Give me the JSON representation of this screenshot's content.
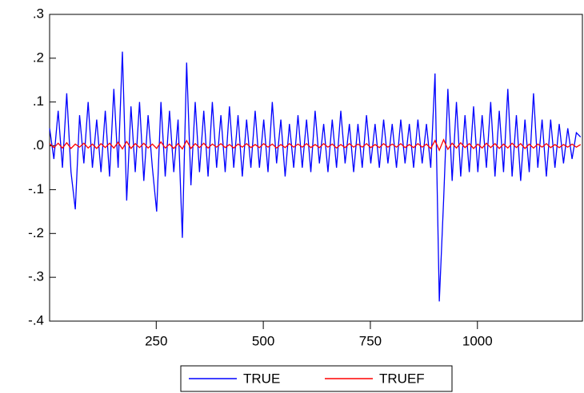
{
  "chart_data": {
    "type": "line",
    "x": [
      1,
      11,
      21,
      31,
      41,
      51,
      61,
      71,
      81,
      91,
      101,
      111,
      121,
      131,
      141,
      151,
      161,
      171,
      181,
      191,
      201,
      211,
      221,
      231,
      241,
      251,
      261,
      271,
      281,
      291,
      301,
      311,
      321,
      331,
      341,
      351,
      361,
      371,
      381,
      391,
      401,
      411,
      421,
      431,
      441,
      451,
      461,
      471,
      481,
      491,
      501,
      511,
      521,
      531,
      541,
      551,
      561,
      571,
      581,
      591,
      601,
      611,
      621,
      631,
      641,
      651,
      661,
      671,
      681,
      691,
      701,
      711,
      721,
      731,
      741,
      751,
      761,
      771,
      781,
      791,
      801,
      811,
      821,
      831,
      841,
      851,
      861,
      871,
      881,
      891,
      901,
      911,
      921,
      931,
      941,
      951,
      961,
      971,
      981,
      991,
      1001,
      1011,
      1021,
      1031,
      1041,
      1051,
      1061,
      1071,
      1081,
      1091,
      1101,
      1111,
      1121,
      1131,
      1141,
      1151,
      1161,
      1171,
      1181,
      1191,
      1201,
      1211,
      1221,
      1231,
      1241
    ],
    "series": [
      {
        "name": "TRUE",
        "color": "#0000ff",
        "values": [
          0.04,
          -0.03,
          0.08,
          -0.05,
          0.12,
          -0.06,
          -0.145,
          0.07,
          -0.04,
          0.1,
          -0.05,
          0.06,
          -0.06,
          0.08,
          -0.07,
          0.13,
          -0.05,
          0.215,
          -0.125,
          0.09,
          -0.06,
          0.1,
          -0.08,
          0.07,
          -0.05,
          -0.15,
          0.1,
          -0.07,
          0.08,
          -0.06,
          0.06,
          -0.21,
          0.19,
          -0.09,
          0.1,
          -0.06,
          0.08,
          -0.07,
          0.1,
          -0.05,
          0.07,
          -0.06,
          0.09,
          -0.05,
          0.07,
          -0.07,
          0.06,
          -0.05,
          0.08,
          -0.05,
          0.06,
          -0.06,
          0.1,
          -0.04,
          0.06,
          -0.07,
          0.05,
          -0.05,
          0.07,
          -0.05,
          0.06,
          -0.06,
          0.08,
          -0.04,
          0.05,
          -0.06,
          0.06,
          -0.05,
          0.08,
          -0.04,
          0.05,
          -0.06,
          0.05,
          -0.05,
          0.07,
          -0.04,
          0.05,
          -0.05,
          0.06,
          -0.04,
          0.05,
          -0.05,
          0.06,
          -0.04,
          0.05,
          -0.05,
          0.06,
          -0.04,
          0.05,
          -0.05,
          0.165,
          -0.355,
          -0.125,
          0.13,
          -0.08,
          0.1,
          -0.07,
          0.07,
          -0.06,
          0.09,
          -0.06,
          0.07,
          -0.05,
          0.1,
          -0.07,
          0.08,
          -0.06,
          0.13,
          -0.07,
          0.07,
          -0.08,
          0.06,
          -0.06,
          0.12,
          -0.05,
          0.06,
          -0.07,
          0.06,
          -0.05,
          0.05,
          -0.04,
          0.04,
          -0.03,
          0.03,
          0.02
        ]
      },
      {
        "name": "TRUEF",
        "color": "#ff0000",
        "values": [
          0.005,
          -0.004,
          0.006,
          -0.005,
          0.007,
          -0.006,
          0.004,
          -0.003,
          0.006,
          -0.005,
          0.004,
          -0.006,
          0.005,
          -0.004,
          0.006,
          -0.005,
          0.008,
          -0.007,
          0.01,
          -0.006,
          0.005,
          -0.004,
          0.006,
          -0.005,
          0.004,
          -0.006,
          0.009,
          -0.005,
          0.004,
          -0.006,
          0.005,
          -0.007,
          0.012,
          -0.006,
          0.005,
          -0.004,
          0.006,
          -0.005,
          0.004,
          -0.003,
          0.005,
          -0.004,
          0.003,
          -0.005,
          0.004,
          -0.003,
          0.005,
          -0.004,
          0.003,
          -0.004,
          0.005,
          -0.003,
          0.004,
          -0.005,
          0.003,
          -0.004,
          0.005,
          -0.003,
          0.004,
          -0.003,
          0.005,
          -0.004,
          0.003,
          -0.004,
          0.005,
          -0.003,
          0.004,
          -0.005,
          0.003,
          -0.004,
          0.005,
          -0.003,
          0.004,
          -0.003,
          0.005,
          -0.004,
          0.003,
          -0.004,
          0.005,
          -0.003,
          0.004,
          -0.003,
          0.005,
          -0.004,
          0.003,
          -0.004,
          0.005,
          -0.003,
          0.004,
          -0.006,
          0.012,
          -0.01,
          0.014,
          -0.008,
          0.006,
          -0.005,
          0.007,
          -0.004,
          0.005,
          -0.006,
          0.004,
          -0.005,
          0.006,
          -0.004,
          0.005,
          -0.006,
          0.004,
          -0.005,
          0.006,
          -0.004,
          0.005,
          -0.006,
          0.004,
          -0.005,
          0.004,
          -0.003,
          0.005,
          -0.004,
          0.003,
          -0.004,
          0.003,
          -0.003,
          0.004,
          -0.003,
          0.003
        ]
      }
    ],
    "xlim": [
      1,
      1247
    ],
    "xticks": [
      250,
      500,
      750,
      1000
    ],
    "ylim": [
      -0.4,
      0.3
    ],
    "yticks": [
      {
        "value": 0.3,
        "label": ".3"
      },
      {
        "value": 0.2,
        "label": ".2"
      },
      {
        "value": 0.1,
        "label": ".1"
      },
      {
        "value": 0,
        "label": ".0"
      },
      {
        "value": -0.1,
        "label": "-.1"
      },
      {
        "value": -0.2,
        "label": "-.2"
      },
      {
        "value": -0.3,
        "label": "-.3"
      },
      {
        "value": -0.4,
        "label": "-.4"
      }
    ],
    "grid": false,
    "legend": "bottom"
  }
}
